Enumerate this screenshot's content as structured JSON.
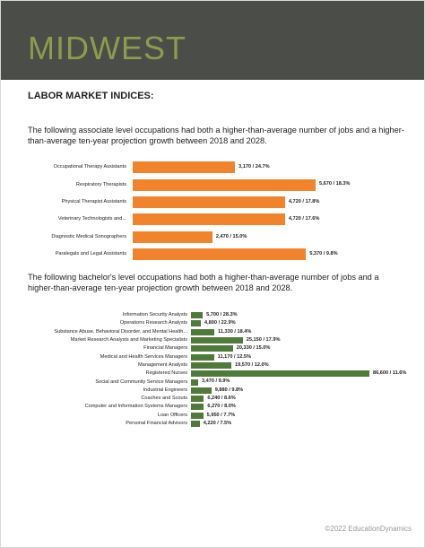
{
  "header": {
    "title": "MIDWEST"
  },
  "section_title": "LABOR MARKET INDICES:",
  "paragraphs": [
    "The following associate level occupations had both a higher-than-average number of jobs and a higher-than-average ten-year projection growth between 2018 and 2028.",
    "The following bachelor's level occupations had both a higher-than-average number of jobs and a higher-than-average ten-year projection growth between 2018 and 2028."
  ],
  "chart_data": [
    {
      "type": "bar",
      "orientation": "horizontal",
      "color": "#f0832b",
      "categories": [
        "Occupational Therapy Assistants",
        "Respiratory Therapists",
        "Physical Therapist Assistants",
        "Veterinary Technologists and...",
        "Diagnostic Medical Sonographers",
        "Paralegals and Legal Assistants"
      ],
      "values": [
        3170,
        5670,
        4720,
        4720,
        2470,
        5370
      ],
      "value_labels": [
        "3,170 / 24.7%",
        "5,670 / 18.3%",
        "4,720 / 17.8%",
        "4,720 / 17.6%",
        "2,470 / 15.0%",
        "5,370 / 9.8%"
      ]
    },
    {
      "type": "bar",
      "orientation": "horizontal",
      "color": "#4f7a3a",
      "categories": [
        "Information Security Analysts",
        "Operations Research Analysts",
        "Substance Abuse, Behavioral Disorder, and Mental Health...",
        "Market Research Analysts and Marketing Specialists",
        "Financial Managers",
        "Medical and Health Services Managers",
        "Management Analysts",
        "Registered Nurses",
        "Social and Community Service Managers",
        "Industrial Engineers",
        "Coaches and Scouts",
        "Computer and Information Systems Managers",
        "Loan Officers",
        "Personal Financial Advisors"
      ],
      "values": [
        5700,
        4800,
        11330,
        25150,
        20330,
        11170,
        19570,
        86600,
        3470,
        9880,
        6240,
        6270,
        5950,
        4220
      ],
      "value_labels": [
        "5,700 / 28.3%",
        "4,800 / 22.9%",
        "11,330 / 18.4%",
        "25,150 / 17.9%",
        "20,330 / 15.0%",
        "11,170 / 12.5%",
        "19,570 / 12.0%",
        "86,600 / 11.6%",
        "3,470 / 9.9%",
        "9,880 / 9.8%",
        "6,240 / 8.6%",
        "6,270 / 8.0%",
        "5,950 / 7.7%",
        "4,220 / 7.5%"
      ]
    }
  ],
  "footer": "©2022 EducationDynamics"
}
